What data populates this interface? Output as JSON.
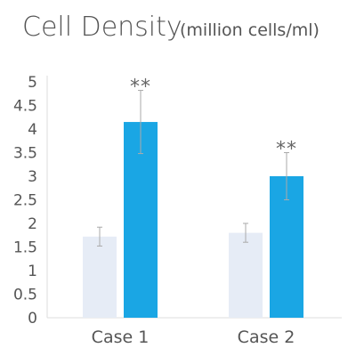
{
  "chart_data": {
    "type": "bar",
    "title": "Cell Density",
    "title_unit": "(million cells/ml)",
    "categories": [
      "Case 1",
      "Case 2"
    ],
    "ylim": [
      0,
      5
    ],
    "yticks": [
      "0",
      "0.5",
      "1",
      "1.5",
      "2",
      "2.5",
      "3",
      "3.5",
      "4",
      "4.5",
      "5"
    ],
    "series": [
      {
        "values": [
          1.72,
          1.8
        ],
        "errors": [
          0.2,
          0.2
        ],
        "color": "#e6ecf6"
      },
      {
        "values": [
          4.15,
          3.0
        ],
        "errors": [
          0.67,
          0.5
        ],
        "color": "#1aa6e4"
      }
    ],
    "annotations": [
      "**",
      "**"
    ],
    "grid": false,
    "legend": "none",
    "axis_color": "#dddddd",
    "error_bar_color": "#aaaaaa"
  }
}
